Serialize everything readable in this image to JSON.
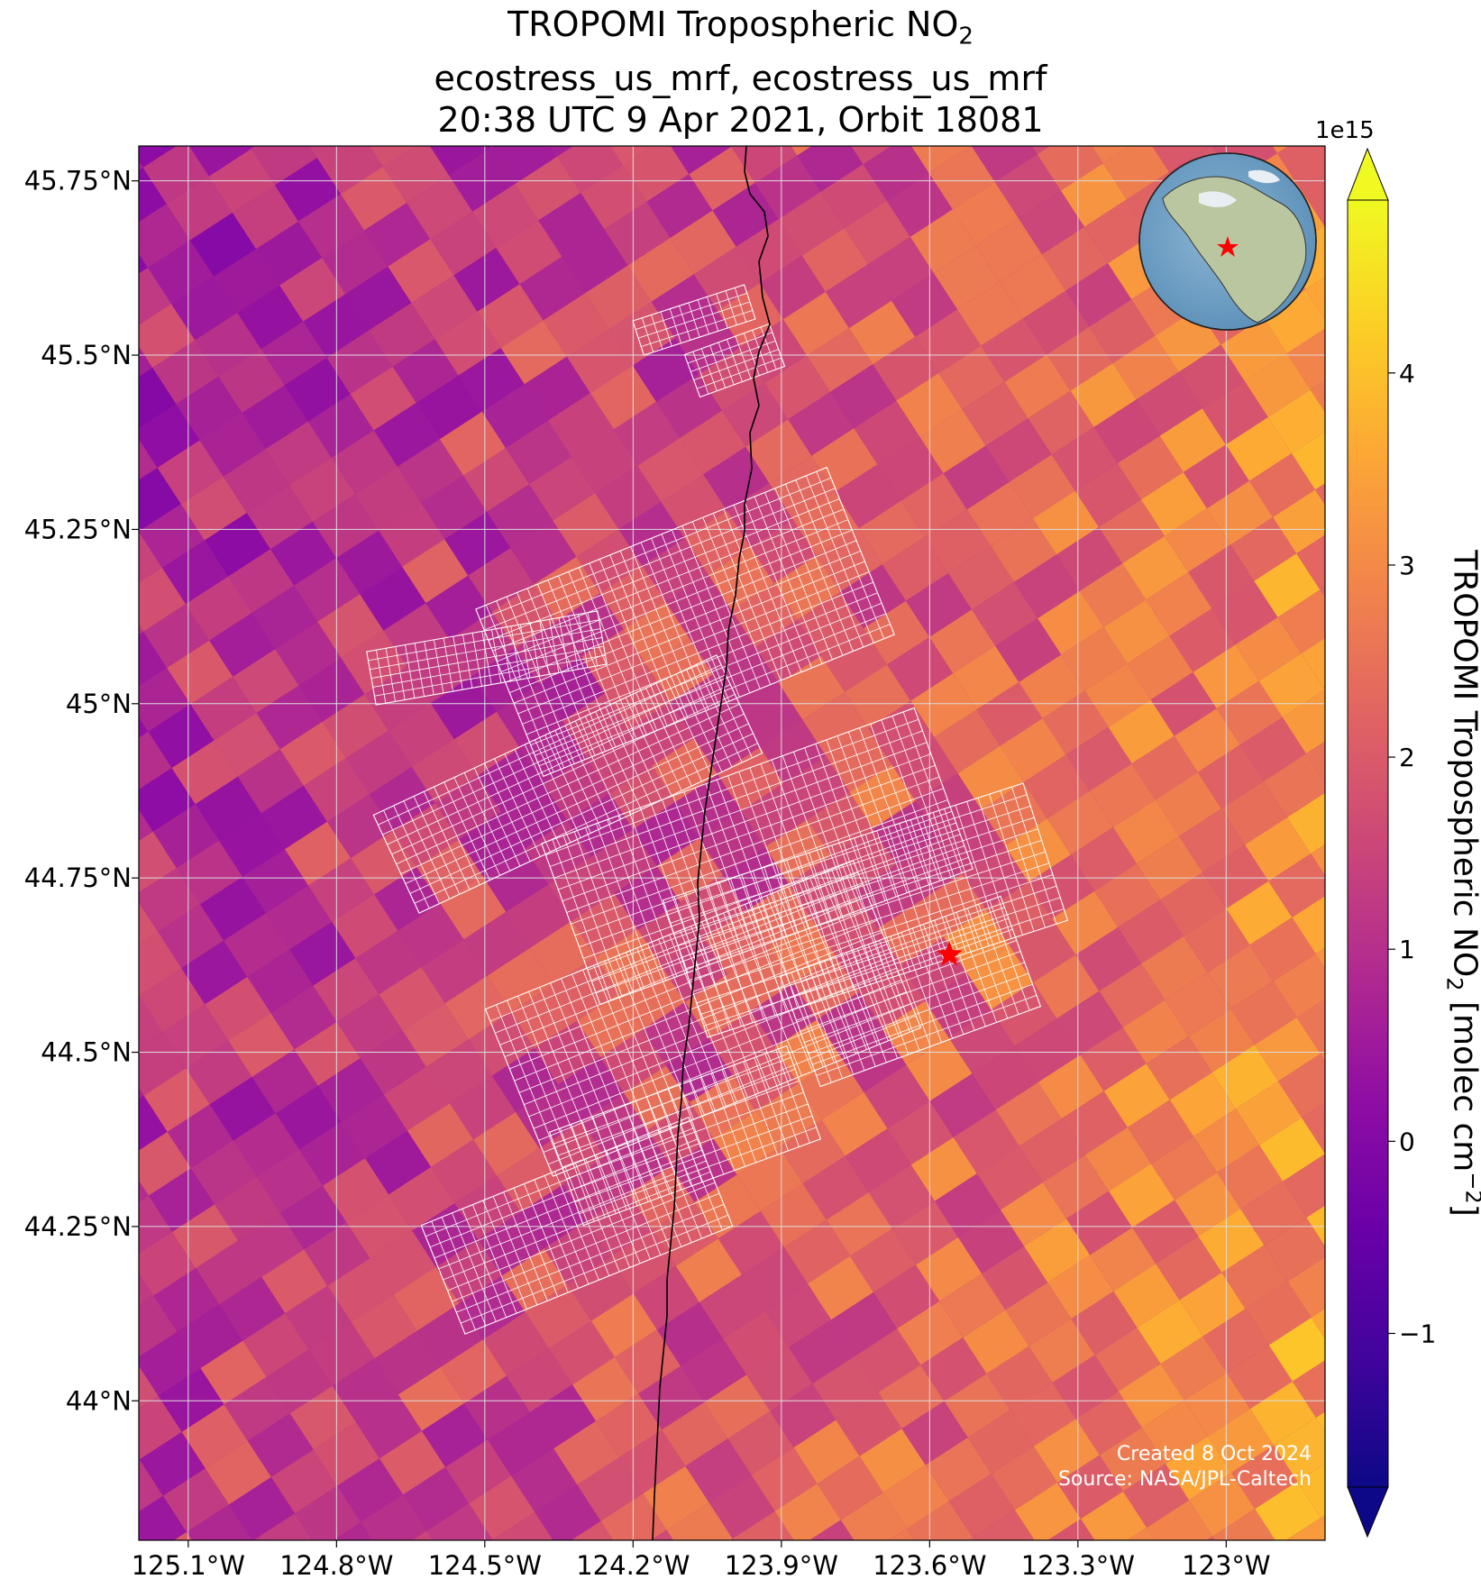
{
  "title": {
    "line1_main": "TROPOMI Tropospheric NO",
    "line1_sub": "2",
    "line2": "ecostress_us_mrf, ecostress_us_mrf",
    "line3": "20:38 UTC 9 Apr 2021, Orbit 18081"
  },
  "credit": {
    "created": "Created 8 Oct 2024",
    "source": "Source: NASA/JPL-Caltech"
  },
  "colorbar": {
    "label_main": "TROPOMI Tropospheric NO",
    "label_sub": "2",
    "label_units": " [molec cm",
    "label_exp": "−2",
    "label_end": "]",
    "offset_text": "1e15",
    "ticks": [
      -1,
      0,
      1,
      2,
      3,
      4
    ],
    "tick_labels": [
      "−1",
      "0",
      "1",
      "2",
      "3",
      "4"
    ],
    "range": [
      -1.8,
      4.9
    ],
    "extend": "both",
    "colormap": "plasma"
  },
  "chart_data": {
    "type": "heatmap",
    "title": "TROPOMI Tropospheric NO2",
    "projection": "map (lat/lon)",
    "x_ticks": [
      -125.1,
      -124.8,
      -124.5,
      -124.2,
      -123.9,
      -123.6,
      -123.3,
      -123.0
    ],
    "x_tick_labels": [
      "125.1°W",
      "124.8°W",
      "124.5°W",
      "124.2°W",
      "123.9°W",
      "123.6°W",
      "123.3°W",
      "123°W"
    ],
    "y_ticks": [
      44.0,
      44.25,
      44.5,
      44.75,
      45.0,
      45.25,
      45.5,
      45.75
    ],
    "y_tick_labels": [
      "44°N",
      "44.25°N",
      "44.5°N",
      "44.75°N",
      "45°N",
      "45.25°N",
      "45.5°N",
      "45.75°N"
    ],
    "xlim": [
      -125.2,
      -122.8
    ],
    "ylim": [
      43.8,
      45.8
    ],
    "grid": true,
    "value_units": "molec cm^-2 (x1e15)",
    "value_range_shown": [
      -1.8,
      4.9
    ],
    "marker": {
      "type": "star",
      "color": "#ff0000",
      "lon": -123.56,
      "lat": 44.64
    },
    "overlay": "ECOSTRESS footprint grid (white outline)",
    "coastline": true,
    "inset_globe": true
  },
  "colors": {
    "marker": "#ff0000",
    "gridlines": "#dddddd",
    "footprint": "#ffffff",
    "coastline": "#000000"
  }
}
